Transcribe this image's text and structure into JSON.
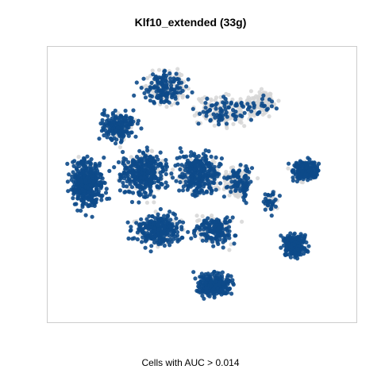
{
  "chart_data": {
    "type": "scatter",
    "title": "Klf10_extended (33g)",
    "subtitle": "Cells with AUC > 0.014",
    "xlabel": "",
    "ylabel": "",
    "axes_visible": false,
    "grid": false,
    "legend": "none",
    "colors": {
      "high": "#0d4a8a",
      "low": "#d6d6d6",
      "frame": "#cccccc"
    },
    "description_of_density": "Two-level coloring: cells passing the AUC threshold are drawn dark blue, others light gray."
  }
}
